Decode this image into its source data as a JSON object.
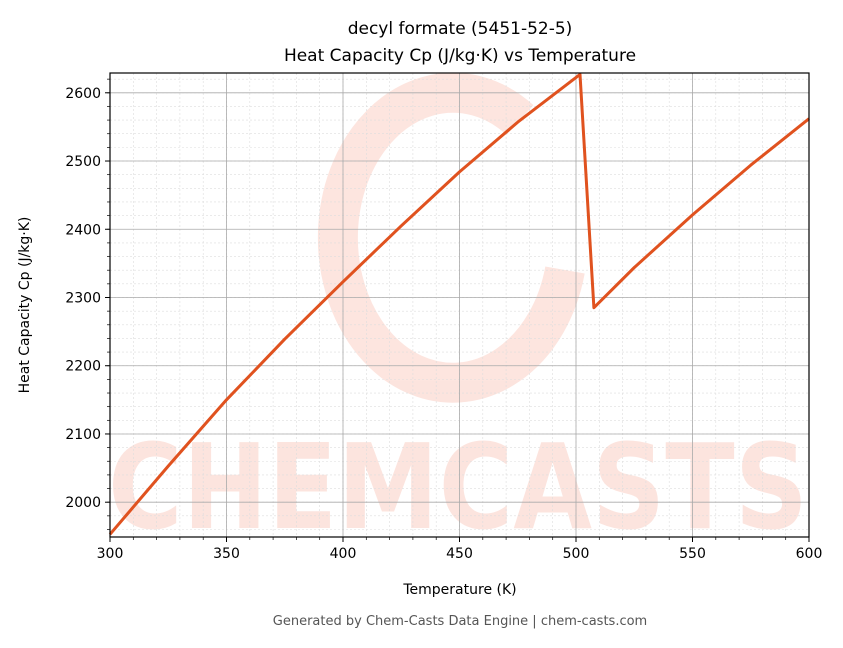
{
  "chart_data": {
    "type": "line",
    "title": "decyl formate (5451-52-5)",
    "subtitle": "Heat Capacity Cp (J/kg·K) vs Temperature",
    "xlabel": "Temperature (K)",
    "ylabel": "Heat Capacity Cp (J/kg·K)",
    "xlim": [
      300,
      600
    ],
    "ylim": [
      1949,
      2629
    ],
    "xticks": [
      300,
      350,
      400,
      450,
      500,
      550,
      600
    ],
    "yticks": [
      2000,
      2100,
      2200,
      2300,
      2400,
      2500,
      2600
    ],
    "grid": true,
    "series": [
      {
        "name": "Cp",
        "color": "#e0521f",
        "x": [
          300,
          325,
          350,
          375,
          400,
          425,
          450,
          475,
          501.7,
          507.7,
          525,
          550,
          575,
          600
        ],
        "y": [
          1953,
          2053,
          2150,
          2239,
          2323,
          2405,
          2484,
          2557,
          2627,
          2285,
          2344,
          2421,
          2494,
          2562
        ]
      }
    ],
    "watermark": "CHEMCASTS",
    "footer": "Generated by Chem-Casts Data Engine | chem-casts.com"
  }
}
